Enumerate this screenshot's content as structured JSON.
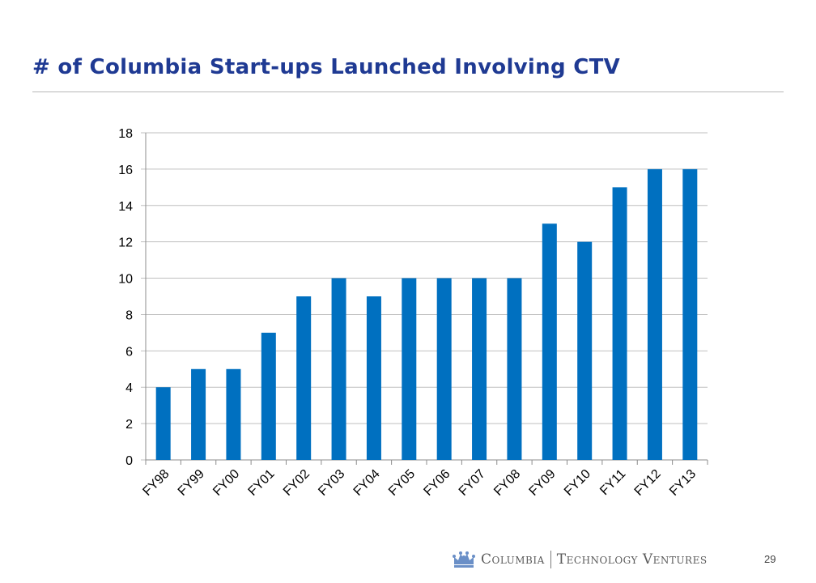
{
  "slide": {
    "title": "# of Columbia Start-ups Launched Involving CTV",
    "page_number": "29"
  },
  "footer": {
    "brand_left": "Columbia",
    "brand_right": "Technology Ventures",
    "logo_icon": "crown-icon"
  },
  "colors": {
    "title": "#1f3a93",
    "bar": "#0070c0",
    "gridline": "#bfbfbf",
    "brand": "#5b5b5b",
    "crown": "#6a8fc7"
  },
  "chart_data": {
    "type": "bar",
    "title": "",
    "xlabel": "",
    "ylabel": "",
    "categories": [
      "FY98",
      "FY99",
      "FY00",
      "FY01",
      "FY02",
      "FY03",
      "FY04",
      "FY05",
      "FY06",
      "FY07",
      "FY08",
      "FY09",
      "FY10",
      "FY11",
      "FY12",
      "FY13"
    ],
    "series": [
      {
        "values": [
          4,
          5,
          5,
          7,
          9,
          10,
          9,
          10,
          10,
          10,
          10,
          13,
          12,
          15,
          16,
          16
        ]
      }
    ],
    "ylim": [
      0,
      18
    ],
    "yticks": [
      0,
      2,
      4,
      6,
      8,
      10,
      12,
      14,
      16,
      18
    ],
    "grid": true,
    "legend": "none",
    "x_tick_rotation_deg": -45
  }
}
